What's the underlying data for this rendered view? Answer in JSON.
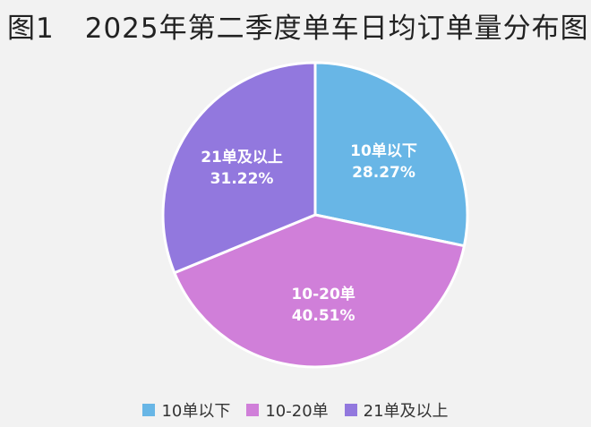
{
  "header": {
    "figure_number": "图1",
    "title": "2025年第二季度单车日均订单量分布图"
  },
  "chart_data": {
    "type": "pie",
    "title": "2025年第二季度单车日均订单量分布图",
    "categories": [
      "10单以下",
      "10-20单",
      "21单及以上"
    ],
    "values": [
      28.27,
      40.51,
      31.22
    ],
    "value_labels": [
      "28.27%",
      "40.51%",
      "31.22%"
    ],
    "colors": [
      "#68b6e6",
      "#d07fd9",
      "#9278de"
    ],
    "start_angle": "12 o'clock, clockwise",
    "legend_position": "bottom",
    "legend": [
      "10单以下",
      "10-20单",
      "21单及以上"
    ]
  }
}
